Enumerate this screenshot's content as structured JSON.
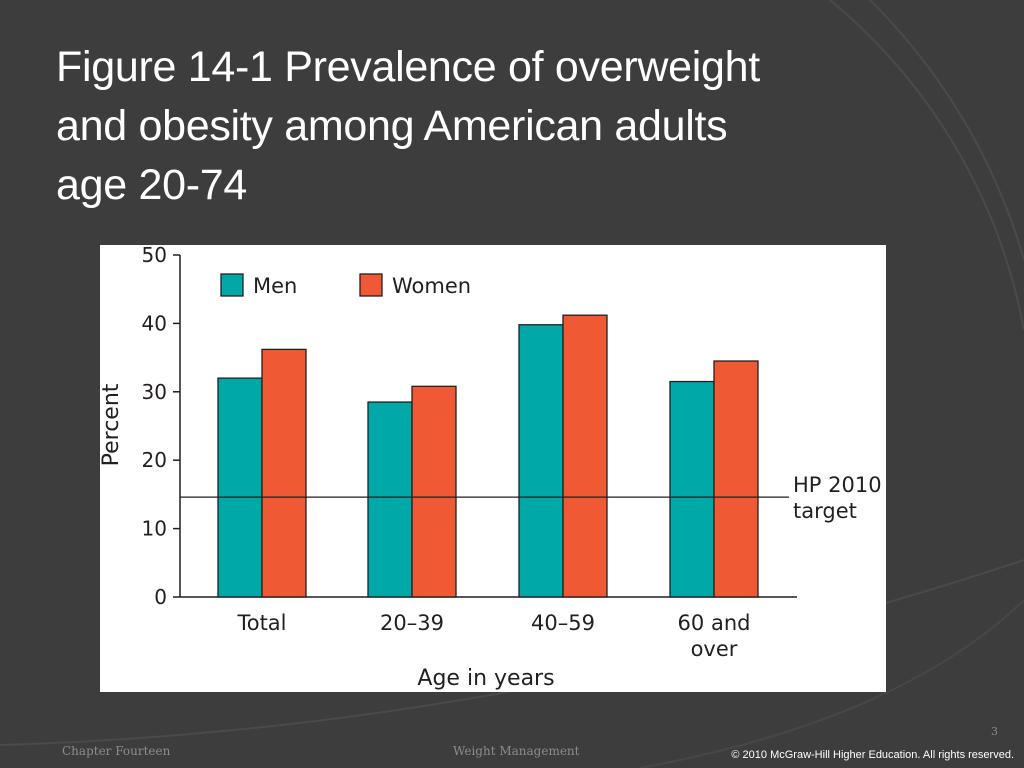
{
  "slide": {
    "title_lines": [
      "Figure 14-1 Prevalence of overweight",
      "and obesity among American adults",
      "age 20-74"
    ],
    "page_number": "3",
    "footer_left": "Chapter Fourteen",
    "footer_center": "Weight Management",
    "footer_right": "© 2010 McGraw-Hill Higher Education. All rights reserved.",
    "colors": {
      "background": "#3d3d3d",
      "decor_arc": "#4a4a4a",
      "men": "#00a8a8",
      "women": "#ef5934",
      "text": "#231f20"
    }
  },
  "chart_data": {
    "type": "bar",
    "categories": [
      "Total",
      "20–39",
      "40–59",
      "60 and over"
    ],
    "category_lines": [
      [
        "Total"
      ],
      [
        "20–39"
      ],
      [
        "40–59"
      ],
      [
        "60 and",
        "over"
      ]
    ],
    "series": [
      {
        "name": "Men",
        "values": [
          32,
          28.5,
          39.8,
          31.5
        ]
      },
      {
        "name": "Women",
        "values": [
          36.2,
          30.8,
          41.2,
          34.5
        ]
      }
    ],
    "reference_line": {
      "value": 14.6,
      "label_lines": [
        "HP 2010",
        "target"
      ]
    },
    "xlabel": "Age in years",
    "ylabel": "Percent",
    "ylim": [
      0,
      50
    ],
    "yticks": [
      0,
      10,
      20,
      30,
      40,
      50
    ],
    "grid": false,
    "legend_position": "top-left"
  }
}
